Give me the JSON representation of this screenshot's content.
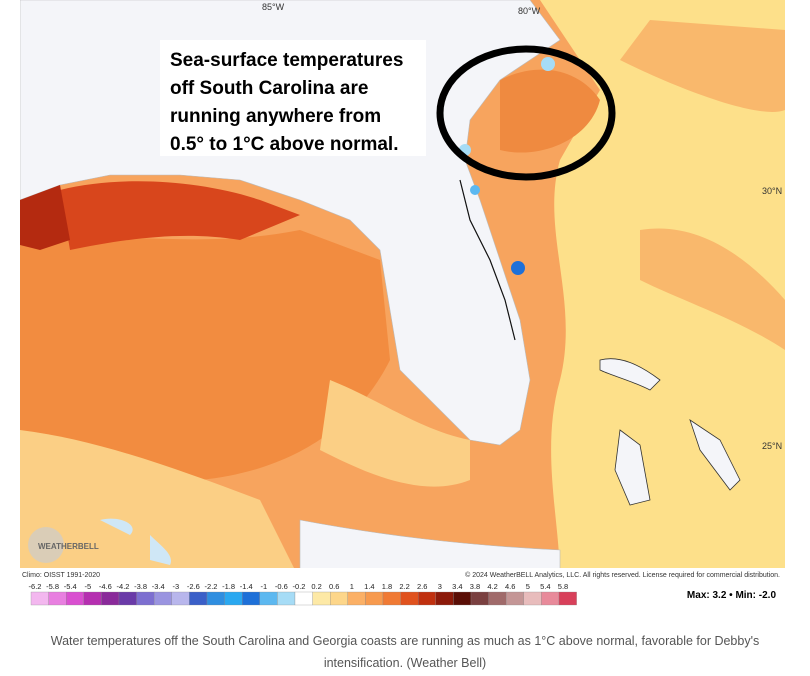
{
  "map": {
    "annotation": [
      "Sea-surface temperatures",
      "off South Carolina are",
      "running anywhere from",
      "0.5° to 1°C above normal."
    ],
    "lon_labels": [
      "85°W",
      "80°W"
    ],
    "lat_labels": [
      "30°N",
      "25°N"
    ],
    "logo": "WEATHERBELL",
    "climo": "Climo: OISST 1991-2020",
    "copyright": "© 2024 WeatherBELL Analytics, LLC. All rights reserved. License required for commercial distribution."
  },
  "colorbar": {
    "ticks": [
      -6.2,
      -5.8,
      -5.4,
      -5,
      -4.6,
      -4.2,
      -3.8,
      -3.4,
      -3,
      -2.6,
      -2.2,
      -1.8,
      -1.4,
      -1,
      -0.6,
      -0.2,
      0.2,
      0.6,
      1,
      1.4,
      1.8,
      2.2,
      2.6,
      3,
      3.4,
      3.8,
      4.2,
      4.6,
      5,
      5.4,
      5.8
    ],
    "colors": [
      "#f3b7ef",
      "#e87fe0",
      "#d94fd0",
      "#b52fb0",
      "#8a2a9a",
      "#6a3aa8",
      "#7d6fd0",
      "#9a94e0",
      "#b8b6ec",
      "#3a5fc8",
      "#2f8ee0",
      "#2aa8f0",
      "#1e70d8",
      "#5cb8f0",
      "#a6dcf6",
      "#ffffff",
      "#fde9a6",
      "#fdd68a",
      "#fbb066",
      "#f79a4e",
      "#f07a34",
      "#e0521e",
      "#c0300f",
      "#8c1a0a",
      "#5a0e06",
      "#7a4040",
      "#a06a6a",
      "#c49696",
      "#e8bcbc",
      "#e88a9a",
      "#d8405a"
    ],
    "maxmin": "Max: 3.2 • Min: -2.0"
  },
  "caption": "Water temperatures off the South Carolina and Georgia coasts are running as much as 1°C above normal, favorable for Debby's intensification. (Weather Bell)"
}
